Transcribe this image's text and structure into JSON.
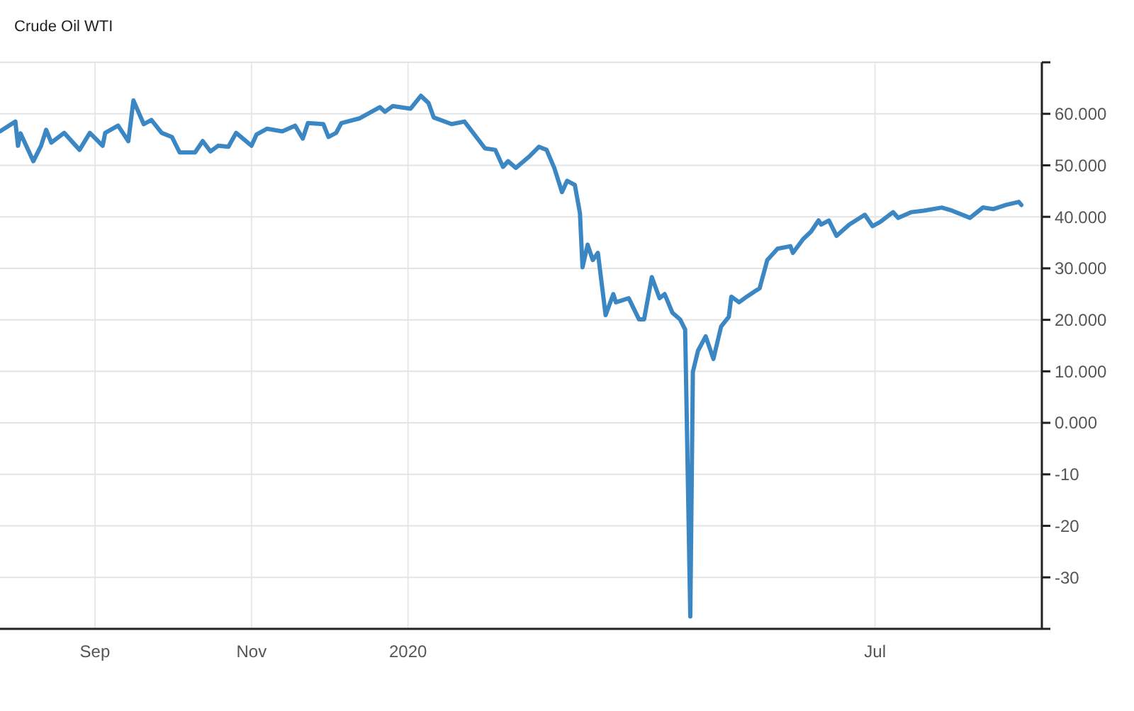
{
  "chart_data": {
    "type": "line",
    "title": "Crude Oil WTI",
    "x": [
      "2019-07-26",
      "2019-08-01",
      "2019-08-02",
      "2019-08-03",
      "2019-08-08",
      "2019-08-11",
      "2019-08-13",
      "2019-08-15",
      "2019-08-20",
      "2019-08-26",
      "2019-08-30",
      "2019-09-04",
      "2019-09-05",
      "2019-09-10",
      "2019-09-14",
      "2019-09-16",
      "2019-09-20",
      "2019-09-23",
      "2019-09-27",
      "2019-10-01",
      "2019-10-04",
      "2019-10-10",
      "2019-10-13",
      "2019-10-16",
      "2019-10-19",
      "2019-10-23",
      "2019-10-26",
      "2019-11-01",
      "2019-11-03",
      "2019-11-07",
      "2019-11-13",
      "2019-11-18",
      "2019-11-21",
      "2019-11-23",
      "2019-11-29",
      "2019-12-01",
      "2019-12-04",
      "2019-12-06",
      "2019-12-13",
      "2019-12-16",
      "2019-12-21",
      "2019-12-23",
      "2019-12-26",
      "2020-01-02",
      "2020-01-06",
      "2020-01-09",
      "2020-01-11",
      "2020-01-18",
      "2020-01-23",
      "2020-01-31",
      "2020-02-04",
      "2020-02-07",
      "2020-02-09",
      "2020-02-12",
      "2020-02-17",
      "2020-02-21",
      "2020-02-24",
      "2020-02-27",
      "2020-03-01",
      "2020-03-03",
      "2020-03-06",
      "2020-03-08",
      "2020-03-09",
      "2020-03-11",
      "2020-03-13",
      "2020-03-15",
      "2020-03-18",
      "2020-03-21",
      "2020-03-22",
      "2020-03-27",
      "2020-03-31",
      "2020-04-02",
      "2020-04-05",
      "2020-04-08",
      "2020-04-10",
      "2020-04-13",
      "2020-04-16",
      "2020-04-18",
      "2020-04-20",
      "2020-04-21",
      "2020-04-23",
      "2020-04-26",
      "2020-04-29",
      "2020-05-02",
      "2020-05-05",
      "2020-05-06",
      "2020-05-09",
      "2020-05-12",
      "2020-05-15",
      "2020-05-17",
      "2020-05-20",
      "2020-05-24",
      "2020-05-29",
      "2020-05-30",
      "2020-06-03",
      "2020-06-06",
      "2020-06-09",
      "2020-06-10",
      "2020-06-13",
      "2020-06-16",
      "2020-06-21",
      "2020-06-27",
      "2020-06-30",
      "2020-07-03",
      "2020-07-08",
      "2020-07-10",
      "2020-07-15",
      "2020-07-20",
      "2020-07-27",
      "2020-07-31",
      "2020-08-07",
      "2020-08-12",
      "2020-08-16",
      "2020-08-21",
      "2020-08-26",
      "2020-08-27"
    ],
    "series": [
      {
        "color": "#3b87c3",
        "values": [
          56.6,
          58.5,
          53.8,
          56.2,
          50.8,
          53.8,
          56.9,
          54.4,
          56.3,
          53,
          56.3,
          53.8,
          56.3,
          57.7,
          54.7,
          62.6,
          58,
          58.8,
          56.3,
          55.5,
          52.5,
          52.5,
          54.7,
          52.7,
          53.8,
          53.6,
          56.3,
          53.8,
          56,
          57.1,
          56.6,
          57.7,
          55.2,
          58.2,
          58,
          55.5,
          56.3,
          58.2,
          59.1,
          59.9,
          61.3,
          60.4,
          61.5,
          61,
          63.5,
          62.1,
          59.3,
          58,
          58.5,
          53.3,
          53,
          49.7,
          50.8,
          49.5,
          51.6,
          53.6,
          53,
          49.5,
          44.8,
          47,
          46.2,
          40.7,
          30.2,
          34.6,
          31.6,
          33,
          20.9,
          25,
          23.4,
          24.2,
          20.1,
          20.1,
          28.3,
          24.2,
          25,
          21.4,
          20.1,
          18.1,
          -37.6,
          9.9,
          14,
          16.8,
          12.4,
          18.7,
          20.6,
          24.5,
          23.4,
          24.5,
          25.5,
          26.1,
          31.6,
          33.8,
          34.3,
          33,
          35.7,
          37.1,
          39.3,
          38.5,
          39.3,
          36.3,
          38.5,
          40.4,
          38.2,
          39,
          40.9,
          39.8,
          40.9,
          41.2,
          41.8,
          41.2,
          39.8,
          41.8,
          41.5,
          42.3,
          42.9,
          42.3
        ]
      }
    ],
    "xlim": [
      "2019-07-26",
      "2020-09-04"
    ],
    "xticks": [
      {
        "value": "2019-09-01",
        "label": "Sep"
      },
      {
        "value": "2019-11-01",
        "label": "Nov"
      },
      {
        "value": "2020-01-01",
        "label": "2020"
      },
      {
        "value": "2020-07-01",
        "label": "Jul"
      }
    ],
    "ylim": [
      -40,
      70
    ],
    "yticks": [
      {
        "value": -40,
        "label": null
      },
      {
        "value": -30,
        "label": "-30"
      },
      {
        "value": -20,
        "label": "-20"
      },
      {
        "value": -10,
        "label": "-10"
      },
      {
        "value": 0,
        "label": "0.000"
      },
      {
        "value": 10,
        "label": "10.000"
      },
      {
        "value": 20,
        "label": "20.000"
      },
      {
        "value": 30,
        "label": "30.000"
      },
      {
        "value": 40,
        "label": "40.000"
      },
      {
        "value": 50,
        "label": "50.000"
      },
      {
        "value": 60,
        "label": "60.000"
      },
      {
        "value": 70,
        "label": null
      }
    ],
    "grid": true,
    "marker": "none",
    "line_style": "solid"
  }
}
